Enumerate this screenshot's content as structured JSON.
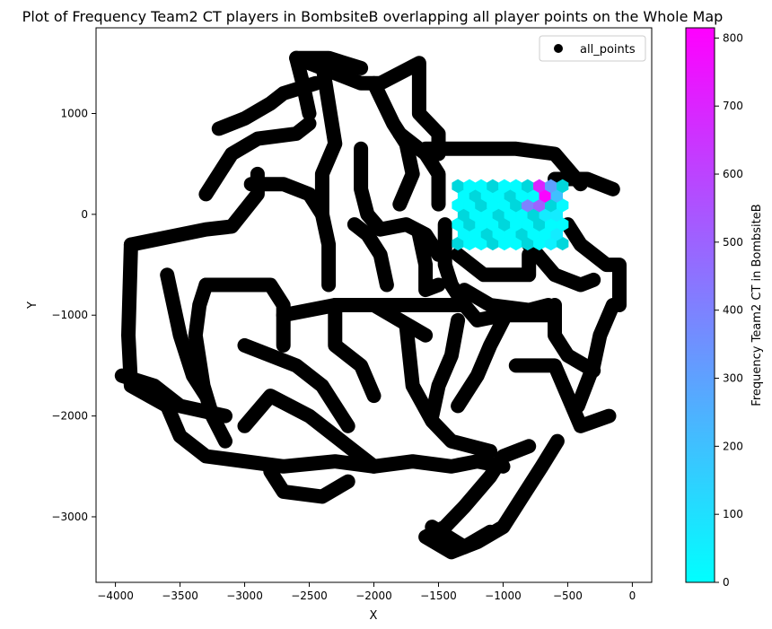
{
  "chart_data": {
    "type": "hexbin-over-scatter",
    "title": "Plot of Frequency Team2 CT players in BombsiteB overlapping all player points on the Whole Map",
    "xlabel": "X",
    "ylabel": "Y",
    "xlim": [
      -4150,
      150
    ],
    "ylim": [
      -3650,
      1850
    ],
    "xticks": [
      -4000,
      -3500,
      -3000,
      -2500,
      -2000,
      -1500,
      -1000,
      -500,
      0
    ],
    "yticks": [
      -3000,
      -2000,
      -1000,
      0,
      1000
    ],
    "grid": false,
    "legend": {
      "placement": "top-right",
      "entries": [
        "all_points"
      ]
    },
    "colorbar": {
      "label": "Frequency Team2 CT in BombsiteB",
      "range": [
        0,
        815
      ],
      "ticks": [
        0,
        100,
        200,
        300,
        400,
        500,
        600,
        700,
        800
      ],
      "colormap": "cool",
      "low_color": "#00ffff",
      "high_color": "#ff00ff"
    },
    "scatter_series": {
      "name": "all_points",
      "color": "#000000",
      "paths": [
        [
          [
            -3880,
            -300
          ],
          [
            -3900,
            -1200
          ],
          [
            -3880,
            -1700
          ],
          [
            -3600,
            -1900
          ],
          [
            -3500,
            -2200
          ],
          [
            -3300,
            -2400
          ],
          [
            -2700,
            -2500
          ],
          [
            -2300,
            -2450
          ],
          [
            -2000,
            -2500
          ],
          [
            -1700,
            -2450
          ],
          [
            -1400,
            -2500
          ],
          [
            -1200,
            -2450
          ],
          [
            -1000,
            -2500
          ]
        ],
        [
          [
            -3880,
            -300
          ],
          [
            -3300,
            -150
          ],
          [
            -3100,
            -120
          ],
          [
            -2900,
            200
          ],
          [
            -2900,
            400
          ]
        ],
        [
          [
            -3600,
            -600
          ],
          [
            -3500,
            -1200
          ],
          [
            -3400,
            -1600
          ],
          [
            -3300,
            -1800
          ]
        ],
        [
          [
            -3950,
            -1600
          ],
          [
            -3700,
            -1700
          ],
          [
            -3500,
            -1900
          ],
          [
            -3150,
            -2000
          ]
        ],
        [
          [
            -3300,
            -700
          ],
          [
            -2800,
            -700
          ],
          [
            -2700,
            -900
          ],
          [
            -2700,
            -1300
          ]
        ],
        [
          [
            -3300,
            -700
          ],
          [
            -3350,
            -900
          ],
          [
            -3380,
            -1200
          ],
          [
            -3320,
            -1700
          ],
          [
            -3250,
            -2000
          ],
          [
            -3150,
            -2250
          ]
        ],
        [
          [
            -3000,
            -1300
          ],
          [
            -2600,
            -1500
          ],
          [
            -2400,
            -1700
          ],
          [
            -2300,
            -1900
          ],
          [
            -2200,
            -2100
          ]
        ],
        [
          [
            -3000,
            -2100
          ],
          [
            -2800,
            -1800
          ],
          [
            -2500,
            -2000
          ],
          [
            -2300,
            -2200
          ],
          [
            -2000,
            -2500
          ]
        ],
        [
          [
            -2800,
            -2550
          ],
          [
            -2700,
            -2750
          ],
          [
            -2400,
            -2800
          ],
          [
            -2200,
            -2650
          ]
        ],
        [
          [
            -2700,
            -1000
          ],
          [
            -2300,
            -900
          ],
          [
            -2000,
            -900
          ],
          [
            -1800,
            -1050
          ],
          [
            -1600,
            -1200
          ]
        ],
        [
          [
            -2300,
            -900
          ],
          [
            -2300,
            -1300
          ],
          [
            -2100,
            -1500
          ],
          [
            -2000,
            -1800
          ]
        ],
        [
          [
            -2000,
            -900
          ],
          [
            -1300,
            -900
          ],
          [
            -1200,
            -1050
          ],
          [
            -1000,
            -1000
          ],
          [
            -600,
            -1000
          ]
        ],
        [
          [
            -1750,
            -1100
          ],
          [
            -1700,
            -1700
          ],
          [
            -1550,
            -2050
          ],
          [
            -1400,
            -2250
          ],
          [
            -1100,
            -2350
          ]
        ],
        [
          [
            -1350,
            -1050
          ],
          [
            -1400,
            -1400
          ],
          [
            -1500,
            -1700
          ],
          [
            -1550,
            -2000
          ]
        ],
        [
          [
            -1000,
            -1050
          ],
          [
            -1100,
            -1300
          ],
          [
            -1200,
            -1600
          ],
          [
            -1350,
            -1900
          ]
        ],
        [
          [
            -600,
            -900
          ],
          [
            -600,
            -1200
          ],
          [
            -500,
            -1400
          ],
          [
            -300,
            -1550
          ]
        ],
        [
          [
            -900,
            -1500
          ],
          [
            -600,
            -1500
          ],
          [
            -500,
            -1800
          ],
          [
            -400,
            -2100
          ],
          [
            -180,
            -2000
          ]
        ],
        [
          [
            -150,
            -900
          ],
          [
            -250,
            -1200
          ],
          [
            -300,
            -1500
          ],
          [
            -420,
            -1900
          ]
        ],
        [
          [
            -800,
            -2300
          ],
          [
            -1000,
            -2400
          ],
          [
            -1100,
            -2600
          ],
          [
            -1300,
            -2900
          ],
          [
            -1450,
            -3100
          ],
          [
            -1600,
            -3200
          ],
          [
            -1400,
            -3350
          ],
          [
            -1200,
            -3250
          ],
          [
            -1000,
            -3100
          ],
          [
            -850,
            -2800
          ],
          [
            -700,
            -2500
          ],
          [
            -580,
            -2250
          ]
        ],
        [
          [
            -1550,
            -3100
          ],
          [
            -1300,
            -3300
          ],
          [
            -1100,
            -3150
          ]
        ],
        [
          [
            -3300,
            200
          ],
          [
            -3100,
            600
          ],
          [
            -2900,
            750
          ],
          [
            -2600,
            800
          ],
          [
            -2500,
            900
          ]
        ],
        [
          [
            -2950,
            300
          ],
          [
            -2700,
            300
          ],
          [
            -2500,
            200
          ],
          [
            -2400,
            0
          ]
        ],
        [
          [
            -2500,
            1000
          ],
          [
            -2550,
            1300
          ],
          [
            -2600,
            1550
          ],
          [
            -2350,
            1550
          ],
          [
            -2100,
            1450
          ]
        ],
        [
          [
            -2400,
            1500
          ],
          [
            -2350,
            1100
          ],
          [
            -2300,
            700
          ],
          [
            -2400,
            400
          ],
          [
            -2400,
            0
          ],
          [
            -2350,
            -300
          ],
          [
            -2350,
            -700
          ]
        ],
        [
          [
            -2600,
            1550
          ],
          [
            -2400,
            1450
          ],
          [
            -2100,
            1300
          ],
          [
            -1950,
            1300
          ],
          [
            -1650,
            1500
          ],
          [
            -1650,
            1000
          ],
          [
            -1500,
            800
          ],
          [
            -1500,
            600
          ]
        ],
        [
          [
            -2000,
            1300
          ],
          [
            -1850,
            900
          ],
          [
            -1750,
            700
          ],
          [
            -1700,
            400
          ],
          [
            -1800,
            100
          ]
        ],
        [
          [
            -2100,
            650
          ],
          [
            -2100,
            250
          ],
          [
            -2050,
            0
          ],
          [
            -1950,
            -150
          ],
          [
            -1750,
            -100
          ],
          [
            -1600,
            -200
          ],
          [
            -1500,
            -400
          ]
        ],
        [
          [
            -2150,
            -100
          ],
          [
            -2050,
            -200
          ],
          [
            -1950,
            -400
          ],
          [
            -1900,
            -700
          ]
        ],
        [
          [
            -3200,
            850
          ],
          [
            -3000,
            950
          ],
          [
            -2800,
            1100
          ],
          [
            -2700,
            1200
          ],
          [
            -2450,
            1300
          ]
        ],
        [
          [
            -1650,
            -200
          ],
          [
            -1600,
            -500
          ],
          [
            -1600,
            -750
          ],
          [
            -1500,
            -700
          ]
        ],
        [
          [
            -1450,
            -100
          ],
          [
            -1450,
            -500
          ],
          [
            -1400,
            -700
          ],
          [
            -1300,
            -900
          ]
        ],
        [
          [
            -1800,
            800
          ],
          [
            -1600,
            600
          ],
          [
            -1500,
            400
          ],
          [
            -1500,
            100
          ]
        ],
        [
          [
            -1600,
            650
          ],
          [
            -1200,
            650
          ],
          [
            -900,
            650
          ],
          [
            -600,
            600
          ],
          [
            -500,
            450
          ],
          [
            -400,
            300
          ]
        ],
        [
          [
            -600,
            350
          ],
          [
            -350,
            350
          ],
          [
            -250,
            300
          ],
          [
            -150,
            250
          ]
        ],
        [
          [
            -500,
            -100
          ],
          [
            -400,
            -300
          ],
          [
            -300,
            -400
          ],
          [
            -200,
            -500
          ],
          [
            -100,
            -500
          ],
          [
            -100,
            -900
          ]
        ],
        [
          [
            -800,
            -300
          ],
          [
            -600,
            -600
          ],
          [
            -400,
            -700
          ],
          [
            -300,
            -650
          ]
        ],
        [
          [
            -1350,
            -400
          ],
          [
            -1150,
            -600
          ],
          [
            -800,
            -600
          ],
          [
            -800,
            -400
          ]
        ],
        [
          [
            -1300,
            -750
          ],
          [
            -1100,
            -900
          ],
          [
            -800,
            -950
          ],
          [
            -650,
            -900
          ]
        ]
      ]
    },
    "hexbin": {
      "hex_width": 90,
      "row_spacing": 95,
      "x_start": -1350,
      "y_start": -290,
      "rows": [
        [
          10,
          10,
          10,
          10,
          10,
          10,
          10,
          10,
          40,
          10
        ],
        [
          15,
          10,
          10,
          10,
          10,
          15,
          10,
          10,
          60
        ],
        [
          10,
          10,
          10,
          10,
          10,
          10,
          10,
          10,
          10,
          10
        ],
        [
          10,
          10,
          10,
          10,
          10,
          10,
          10,
          60,
          60
        ],
        [
          10,
          10,
          10,
          10,
          10,
          20,
          400,
          500,
          10,
          15
        ],
        [
          10,
          10,
          10,
          10,
          10,
          10,
          10,
          800,
          200
        ],
        [
          10,
          10,
          10,
          10,
          10,
          10,
          10,
          700,
          300,
          20
        ]
      ]
    }
  }
}
